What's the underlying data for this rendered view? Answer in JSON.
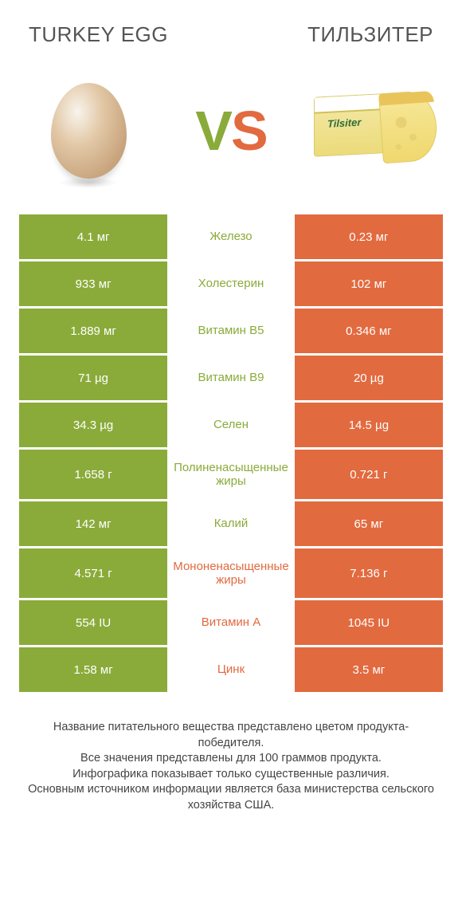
{
  "header": {
    "left_title": "TURKEY EGG",
    "right_title": "ТИЛЬЗИТЕР"
  },
  "vs": {
    "v": "V",
    "s": "S"
  },
  "cheese_label": "Tilsiter",
  "colors": {
    "green": "#8aab3a",
    "orange": "#e26a3f",
    "bg": "#ffffff",
    "text": "#333333"
  },
  "table": {
    "left_color": "#8aab3a",
    "right_color": "#e26a3f",
    "rows": [
      {
        "left": "4.1 мг",
        "mid": "Железо",
        "right": "0.23 мг",
        "winner": "left",
        "tall": false
      },
      {
        "left": "933 мг",
        "mid": "Холестерин",
        "right": "102 мг",
        "winner": "left",
        "tall": false
      },
      {
        "left": "1.889 мг",
        "mid": "Витамин B5",
        "right": "0.346 мг",
        "winner": "left",
        "tall": false
      },
      {
        "left": "71 µg",
        "mid": "Витамин B9",
        "right": "20 µg",
        "winner": "left",
        "tall": false
      },
      {
        "left": "34.3 µg",
        "mid": "Селен",
        "right": "14.5 µg",
        "winner": "left",
        "tall": false
      },
      {
        "left": "1.658 г",
        "mid": "Полиненасыщенные жиры",
        "right": "0.721 г",
        "winner": "left",
        "tall": true
      },
      {
        "left": "142 мг",
        "mid": "Калий",
        "right": "65 мг",
        "winner": "left",
        "tall": false
      },
      {
        "left": "4.571 г",
        "mid": "Мононенасыщенные жиры",
        "right": "7.136 г",
        "winner": "right",
        "tall": true
      },
      {
        "left": "554 IU",
        "mid": "Витамин A",
        "right": "1045 IU",
        "winner": "right",
        "tall": false
      },
      {
        "left": "1.58 мг",
        "mid": "Цинк",
        "right": "3.5 мг",
        "winner": "right",
        "tall": false
      }
    ]
  },
  "footer": {
    "line1": "Название питательного вещества представлено цветом продукта-победителя.",
    "line2": "Все значения представлены для 100 граммов продукта.",
    "line3": "Инфографика показывает только существенные различия.",
    "line4": "Основным источником информации является база министерства сельского хозяйства США."
  }
}
